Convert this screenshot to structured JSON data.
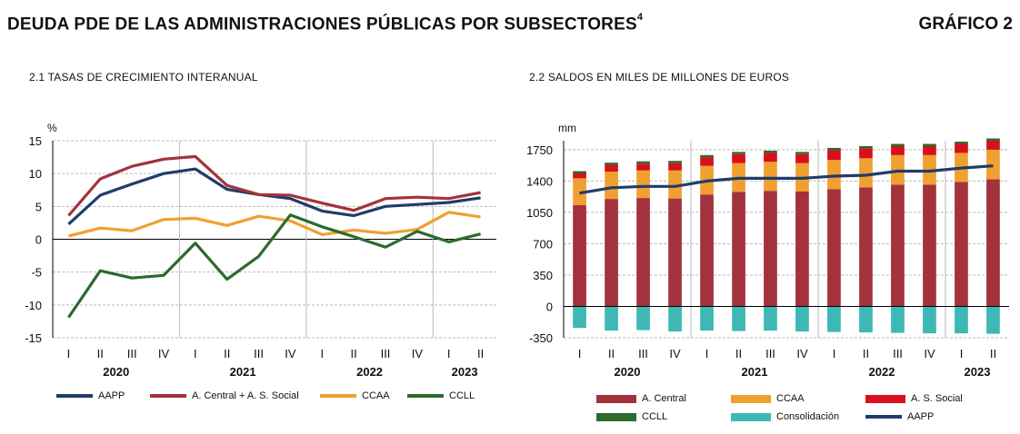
{
  "header": {
    "title": "DEUDA PDE DE LAS ADMINISTRACIONES PÚBLICAS POR SUBSECTORES",
    "title_note": "4",
    "figure_number": "GRÁFICO 2"
  },
  "colors": {
    "aapp": "#1f3d6b",
    "central": "#a3323c",
    "ccaa": "#f0a030",
    "ccll": "#2d6a2d",
    "social": "#d8101c",
    "consolidacion": "#3eb8b4",
    "grid": "#b9b9b9"
  },
  "chart_data": [
    {
      "type": "line",
      "title": "2.1 TASAS DE CRECIMIENTO INTERANUAL",
      "ylabel": "%",
      "ylim": [
        -15,
        15
      ],
      "yticks": [
        15,
        10,
        5,
        0,
        -5,
        -10,
        -15
      ],
      "categories": [
        "I",
        "II",
        "III",
        "IV",
        "I",
        "II",
        "III",
        "IV",
        "I",
        "II",
        "III",
        "IV",
        "I",
        "II"
      ],
      "year_labels": [
        "2020",
        "2021",
        "2022",
        "2023"
      ],
      "grid": true,
      "legend_position": "bottom",
      "series": [
        {
          "name": "AAPP",
          "color_key": "aapp",
          "values": [
            2.3,
            6.7,
            8.4,
            10.0,
            10.7,
            7.6,
            6.8,
            6.2,
            4.3,
            3.6,
            5.0,
            5.3,
            5.6,
            6.3
          ]
        },
        {
          "name": "A. Central + A. S. Social",
          "color_key": "central",
          "values": [
            3.6,
            9.2,
            11.1,
            12.2,
            12.6,
            8.2,
            6.8,
            6.7,
            5.5,
            4.4,
            6.2,
            6.4,
            6.2,
            7.1
          ]
        },
        {
          "name": "CCAA",
          "color_key": "ccaa",
          "values": [
            0.5,
            1.7,
            1.3,
            3.0,
            3.2,
            2.1,
            3.5,
            2.8,
            0.7,
            1.4,
            0.9,
            1.5,
            4.1,
            3.4
          ]
        },
        {
          "name": "CCLL",
          "color_key": "ccll",
          "values": [
            -11.9,
            -4.8,
            -5.9,
            -5.5,
            -0.6,
            -6.1,
            -2.6,
            3.7,
            1.9,
            0.4,
            -1.2,
            1.2,
            -0.4,
            0.8
          ]
        }
      ]
    },
    {
      "type": "bar",
      "title": "2.2 SALDOS EN MILES DE MILLONES DE EUROS",
      "ylabel": "mm",
      "ylim": [
        -350,
        1850
      ],
      "yticks": [
        1750,
        1400,
        1050,
        700,
        350,
        0,
        -350
      ],
      "categories": [
        "I",
        "II",
        "III",
        "IV",
        "I",
        "II",
        "III",
        "IV",
        "I",
        "II",
        "III",
        "IV",
        "I",
        "II"
      ],
      "year_labels": [
        "2020",
        "2021",
        "2022",
        "2023"
      ],
      "stacked": true,
      "grid": true,
      "legend_position": "bottom",
      "series": [
        {
          "name": "A. Central",
          "color_key": "central",
          "values": [
            1130,
            1200,
            1210,
            1205,
            1250,
            1280,
            1290,
            1285,
            1310,
            1330,
            1360,
            1360,
            1390,
            1420
          ]
        },
        {
          "name": "CCAA",
          "color_key": "ccaa",
          "values": [
            300,
            305,
            310,
            315,
            320,
            320,
            325,
            315,
            325,
            325,
            330,
            330,
            325,
            330
          ]
        },
        {
          "name": "A. S. Social",
          "color_key": "social",
          "values": [
            55,
            75,
            75,
            80,
            95,
            100,
            100,
            100,
            110,
            110,
            100,
            100,
            100,
            100
          ]
        },
        {
          "name": "CCLL",
          "color_key": "ccll",
          "values": [
            25,
            25,
            25,
            25,
            25,
            25,
            25,
            25,
            25,
            25,
            25,
            25,
            25,
            25
          ]
        },
        {
          "name": "Consolidación",
          "color_key": "consolidacion",
          "values": [
            -240,
            -270,
            -265,
            -280,
            -270,
            -275,
            -270,
            -280,
            -285,
            -290,
            -295,
            -300,
            -300,
            -305
          ]
        }
      ],
      "line_series": {
        "name": "AAPP",
        "color_key": "aapp",
        "values": [
          1265,
          1325,
          1340,
          1340,
          1400,
          1430,
          1430,
          1430,
          1455,
          1465,
          1510,
          1510,
          1545,
          1570
        ]
      }
    }
  ]
}
